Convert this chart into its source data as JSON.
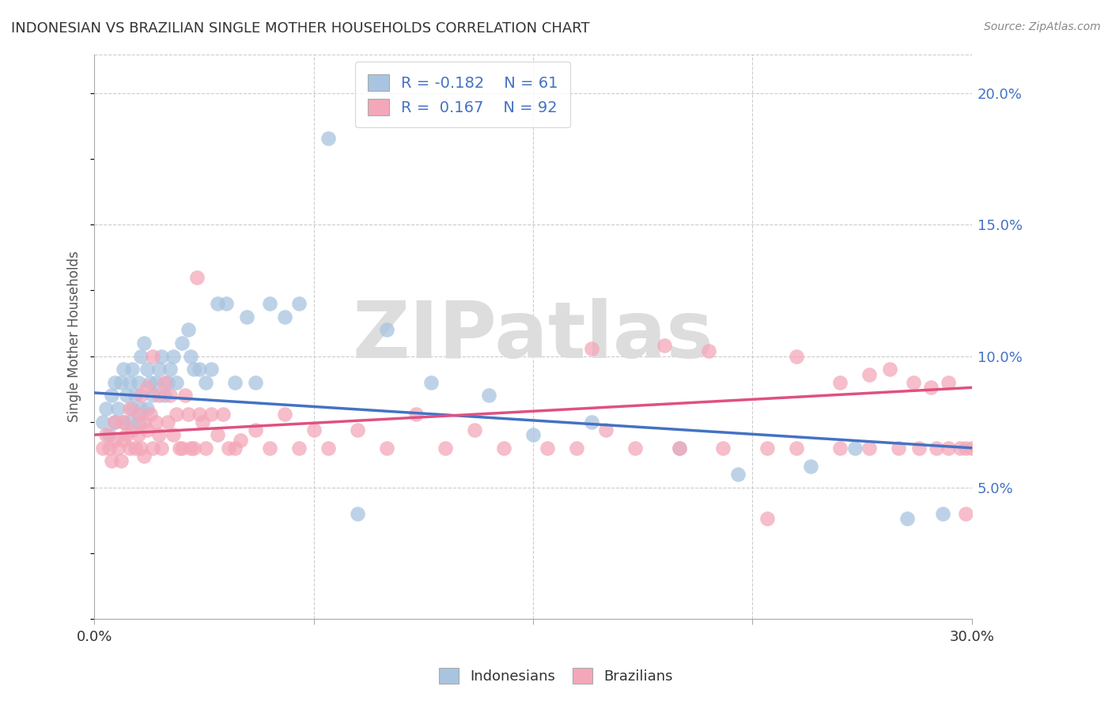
{
  "title": "INDONESIAN VS BRAZILIAN SINGLE MOTHER HOUSEHOLDS CORRELATION CHART",
  "source": "Source: ZipAtlas.com",
  "ylabel": "Single Mother Households",
  "color_indonesian": "#a8c4e0",
  "color_brazilian": "#f4a7b9",
  "color_indonesian_line": "#4472c4",
  "color_brazilian_line": "#e05080",
  "legend_R_indo": "R = -0.182",
  "legend_N_indo": "N = 61",
  "legend_R_braz": "R =  0.167",
  "legend_N_braz": "N = 92",
  "xlim": [
    0.0,
    0.3
  ],
  "ylim": [
    0.0,
    0.215
  ],
  "yticks": [
    0.05,
    0.1,
    0.15,
    0.2
  ],
  "ytick_labels": [
    "5.0%",
    "10.0%",
    "15.0%",
    "20.0%"
  ],
  "xticks": [
    0.0,
    0.075,
    0.15,
    0.225,
    0.3
  ],
  "xtick_labels": [
    "0.0%",
    "",
    "",
    "",
    "30.0%"
  ],
  "indo_line_x0": 0.0,
  "indo_line_y0": 0.086,
  "indo_line_x1": 0.3,
  "indo_line_y1": 0.065,
  "braz_line_x0": 0.0,
  "braz_line_y0": 0.07,
  "braz_line_x1": 0.3,
  "braz_line_y1": 0.088,
  "watermark_text": "ZIPatlas",
  "indo_x": [
    0.003,
    0.004,
    0.005,
    0.006,
    0.007,
    0.007,
    0.008,
    0.009,
    0.01,
    0.01,
    0.011,
    0.012,
    0.012,
    0.013,
    0.013,
    0.014,
    0.015,
    0.015,
    0.016,
    0.016,
    0.017,
    0.018,
    0.018,
    0.019,
    0.02,
    0.021,
    0.022,
    0.023,
    0.024,
    0.025,
    0.026,
    0.027,
    0.028,
    0.03,
    0.032,
    0.033,
    0.034,
    0.036,
    0.038,
    0.04,
    0.042,
    0.045,
    0.048,
    0.052,
    0.055,
    0.06,
    0.065,
    0.07,
    0.08,
    0.09,
    0.1,
    0.115,
    0.135,
    0.15,
    0.17,
    0.2,
    0.22,
    0.245,
    0.26,
    0.278,
    0.29
  ],
  "indo_y": [
    0.075,
    0.08,
    0.07,
    0.085,
    0.09,
    0.075,
    0.08,
    0.09,
    0.095,
    0.075,
    0.085,
    0.075,
    0.09,
    0.08,
    0.095,
    0.085,
    0.09,
    0.075,
    0.1,
    0.08,
    0.105,
    0.095,
    0.08,
    0.09,
    0.085,
    0.09,
    0.095,
    0.1,
    0.085,
    0.09,
    0.095,
    0.1,
    0.09,
    0.105,
    0.11,
    0.1,
    0.095,
    0.095,
    0.09,
    0.095,
    0.12,
    0.12,
    0.09,
    0.115,
    0.09,
    0.12,
    0.115,
    0.12,
    0.183,
    0.04,
    0.11,
    0.09,
    0.085,
    0.07,
    0.075,
    0.065,
    0.055,
    0.058,
    0.065,
    0.038,
    0.04
  ],
  "braz_x": [
    0.003,
    0.004,
    0.005,
    0.006,
    0.007,
    0.007,
    0.008,
    0.009,
    0.01,
    0.01,
    0.011,
    0.012,
    0.012,
    0.013,
    0.014,
    0.015,
    0.015,
    0.016,
    0.016,
    0.017,
    0.017,
    0.018,
    0.018,
    0.019,
    0.02,
    0.02,
    0.021,
    0.022,
    0.022,
    0.023,
    0.024,
    0.025,
    0.026,
    0.027,
    0.028,
    0.029,
    0.03,
    0.031,
    0.032,
    0.033,
    0.034,
    0.035,
    0.036,
    0.037,
    0.038,
    0.04,
    0.042,
    0.044,
    0.046,
    0.048,
    0.05,
    0.055,
    0.06,
    0.065,
    0.07,
    0.075,
    0.08,
    0.09,
    0.1,
    0.11,
    0.12,
    0.13,
    0.14,
    0.155,
    0.165,
    0.175,
    0.185,
    0.2,
    0.215,
    0.23,
    0.24,
    0.255,
    0.265,
    0.275,
    0.282,
    0.288,
    0.292,
    0.296,
    0.298,
    0.3,
    0.17,
    0.195,
    0.21,
    0.23,
    0.24,
    0.255,
    0.265,
    0.272,
    0.28,
    0.286,
    0.292,
    0.298
  ],
  "braz_y": [
    0.065,
    0.07,
    0.065,
    0.06,
    0.068,
    0.075,
    0.065,
    0.06,
    0.068,
    0.075,
    0.07,
    0.065,
    0.08,
    0.072,
    0.065,
    0.07,
    0.078,
    0.065,
    0.085,
    0.075,
    0.062,
    0.088,
    0.072,
    0.078,
    0.065,
    0.1,
    0.075,
    0.085,
    0.07,
    0.065,
    0.09,
    0.075,
    0.085,
    0.07,
    0.078,
    0.065,
    0.065,
    0.085,
    0.078,
    0.065,
    0.065,
    0.13,
    0.078,
    0.075,
    0.065,
    0.078,
    0.07,
    0.078,
    0.065,
    0.065,
    0.068,
    0.072,
    0.065,
    0.078,
    0.065,
    0.072,
    0.065,
    0.072,
    0.065,
    0.078,
    0.065,
    0.072,
    0.065,
    0.065,
    0.065,
    0.072,
    0.065,
    0.065,
    0.065,
    0.065,
    0.065,
    0.065,
    0.065,
    0.065,
    0.065,
    0.065,
    0.065,
    0.065,
    0.065,
    0.065,
    0.103,
    0.104,
    0.102,
    0.038,
    0.1,
    0.09,
    0.093,
    0.095,
    0.09,
    0.088,
    0.09,
    0.04
  ]
}
